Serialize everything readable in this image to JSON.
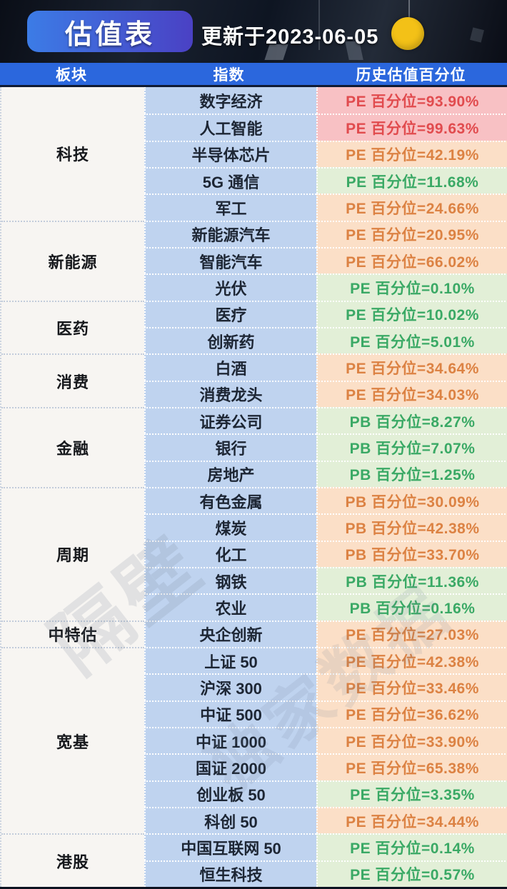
{
  "header": {
    "title": "估值表",
    "updated": "更新于2023-06-05",
    "badge_gradient_left": "#3c7ce6",
    "badge_gradient_right": "#4a41c4",
    "dot_color": "#f3c117",
    "bar_color": "#2b67dd"
  },
  "columns": {
    "sector": "板块",
    "index": "指数",
    "percentile": "历史估值百分位"
  },
  "palette": {
    "red": {
      "bg": "#f8c1c4",
      "text": "#e14b4e"
    },
    "orange": {
      "bg": "#fbdfc7",
      "text": "#dc8243"
    },
    "green": {
      "bg": "#e2efd7",
      "text": "#3aa965"
    },
    "index_col_bg": "#bfd3ef",
    "sector_col_bg": "#f7f5f2"
  },
  "watermarks": {
    "wm1": "隔壁",
    "wm2": "独家数据"
  },
  "table": {
    "groups": [
      {
        "sector": "科技",
        "rows": [
          {
            "index": "数字经济",
            "label": "PE 百分位=93.90%",
            "level": "red"
          },
          {
            "index": "人工智能",
            "label": "PE 百分位=99.63%",
            "level": "red"
          },
          {
            "index": "半导体芯片",
            "label": "PE 百分位=42.19%",
            "level": "orange"
          },
          {
            "index": "5G 通信",
            "label": "PE 百分位=11.68%",
            "level": "green"
          },
          {
            "index": "军工",
            "label": "PE 百分位=24.66%",
            "level": "orange"
          }
        ]
      },
      {
        "sector": "新能源",
        "rows": [
          {
            "index": "新能源汽车",
            "label": "PE 百分位=20.95%",
            "level": "orange"
          },
          {
            "index": "智能汽车",
            "label": "PE 百分位=66.02%",
            "level": "orange"
          },
          {
            "index": "光伏",
            "label": "PE 百分位=0.10%",
            "level": "green"
          }
        ]
      },
      {
        "sector": "医药",
        "rows": [
          {
            "index": "医疗",
            "label": "PE 百分位=10.02%",
            "level": "green"
          },
          {
            "index": "创新药",
            "label": "PE 百分位=5.01%",
            "level": "green"
          }
        ]
      },
      {
        "sector": "消费",
        "rows": [
          {
            "index": "白酒",
            "label": "PE 百分位=34.64%",
            "level": "orange"
          },
          {
            "index": "消费龙头",
            "label": "PE 百分位=34.03%",
            "level": "orange"
          }
        ]
      },
      {
        "sector": "金融",
        "rows": [
          {
            "index": "证券公司",
            "label": "PB 百分位=8.27%",
            "level": "green"
          },
          {
            "index": "银行",
            "label": "PB 百分位=7.07%",
            "level": "green"
          },
          {
            "index": "房地产",
            "label": "PB 百分位=1.25%",
            "level": "green"
          }
        ]
      },
      {
        "sector": "周期",
        "rows": [
          {
            "index": "有色金属",
            "label": "PB 百分位=30.09%",
            "level": "orange"
          },
          {
            "index": "煤炭",
            "label": "PB 百分位=42.38%",
            "level": "orange"
          },
          {
            "index": "化工",
            "label": "PB 百分位=33.70%",
            "level": "orange"
          },
          {
            "index": "钢铁",
            "label": "PB 百分位=11.36%",
            "level": "green"
          },
          {
            "index": "农业",
            "label": "PB 百分位=0.16%",
            "level": "green"
          }
        ]
      },
      {
        "sector": "中特估",
        "rows": [
          {
            "index": "央企创新",
            "label": "PE 百分位=27.03%",
            "level": "orange"
          }
        ]
      },
      {
        "sector": "宽基",
        "rows": [
          {
            "index": "上证 50",
            "label": "PE 百分位=42.38%",
            "level": "orange"
          },
          {
            "index": "沪深 300",
            "label": "PE 百分位=33.46%",
            "level": "orange"
          },
          {
            "index": "中证 500",
            "label": "PE 百分位=36.62%",
            "level": "orange"
          },
          {
            "index": "中证 1000",
            "label": "PE 百分位=33.90%",
            "level": "orange"
          },
          {
            "index": "国证 2000",
            "label": "PE 百分位=65.38%",
            "level": "orange"
          },
          {
            "index": "创业板 50",
            "label": "PE 百分位=3.35%",
            "level": "green"
          },
          {
            "index": "科创 50",
            "label": "PE 百分位=34.44%",
            "level": "orange"
          }
        ]
      },
      {
        "sector": "港股",
        "rows": [
          {
            "index": "中国互联网 50",
            "label": "PE 百分位=0.14%",
            "level": "green"
          },
          {
            "index": "恒生科技",
            "label": "PE 百分位=0.57%",
            "level": "green"
          }
        ]
      }
    ]
  },
  "chart_data": {
    "type": "table",
    "title": "估值表",
    "updated": "2023-06-05",
    "columns": [
      "板块",
      "指数",
      "历史估值百分位"
    ],
    "rows": [
      [
        "科技",
        "数字经济",
        "PE",
        93.9
      ],
      [
        "科技",
        "人工智能",
        "PE",
        99.63
      ],
      [
        "科技",
        "半导体芯片",
        "PE",
        42.19
      ],
      [
        "科技",
        "5G 通信",
        "PE",
        11.68
      ],
      [
        "科技",
        "军工",
        "PE",
        24.66
      ],
      [
        "新能源",
        "新能源汽车",
        "PE",
        20.95
      ],
      [
        "新能源",
        "智能汽车",
        "PE",
        66.02
      ],
      [
        "新能源",
        "光伏",
        "PE",
        0.1
      ],
      [
        "医药",
        "医疗",
        "PE",
        10.02
      ],
      [
        "医药",
        "创新药",
        "PE",
        5.01
      ],
      [
        "消费",
        "白酒",
        "PE",
        34.64
      ],
      [
        "消费",
        "消费龙头",
        "PE",
        34.03
      ],
      [
        "金融",
        "证券公司",
        "PB",
        8.27
      ],
      [
        "金融",
        "银行",
        "PB",
        7.07
      ],
      [
        "金融",
        "房地产",
        "PB",
        1.25
      ],
      [
        "周期",
        "有色金属",
        "PB",
        30.09
      ],
      [
        "周期",
        "煤炭",
        "PB",
        42.38
      ],
      [
        "周期",
        "化工",
        "PB",
        33.7
      ],
      [
        "周期",
        "钢铁",
        "PB",
        11.36
      ],
      [
        "周期",
        "农业",
        "PB",
        0.16
      ],
      [
        "中特估",
        "央企创新",
        "PE",
        27.03
      ],
      [
        "宽基",
        "上证 50",
        "PE",
        42.38
      ],
      [
        "宽基",
        "沪深 300",
        "PE",
        33.46
      ],
      [
        "宽基",
        "中证 500",
        "PE",
        36.62
      ],
      [
        "宽基",
        "中证 1000",
        "PE",
        33.9
      ],
      [
        "宽基",
        "国证 2000",
        "PE",
        65.38
      ],
      [
        "宽基",
        "创业板 50",
        "PE",
        3.35
      ],
      [
        "宽基",
        "科创 50",
        "PE",
        34.44
      ],
      [
        "港股",
        "中国互联网 50",
        "PE",
        0.14
      ],
      [
        "港股",
        "恒生科技",
        "PE",
        0.57
      ]
    ]
  }
}
